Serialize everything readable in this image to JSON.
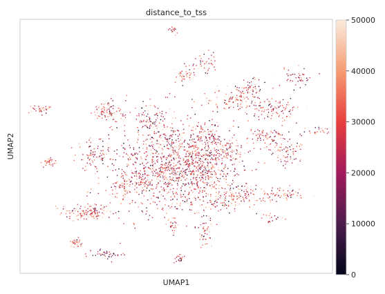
{
  "chart_data": {
    "type": "scatter",
    "title": "distance_to_tss",
    "xlabel": "UMAP1",
    "ylabel": "UMAP2",
    "grid": false,
    "colorbar": {
      "label": "",
      "range": [
        0,
        50000
      ],
      "ticks": [
        0,
        10000,
        20000,
        30000,
        40000,
        50000
      ],
      "tick_labels": [
        "0",
        "10000",
        "20000",
        "30000",
        "40000",
        "50000"
      ],
      "colormap": "rocket",
      "colors": [
        "#03051a",
        "#4c1d4b",
        "#a11a5b",
        "#e83f3f",
        "#f69c73",
        "#faebdd"
      ]
    },
    "clusters": [
      {
        "x": 0.47,
        "y": 0.58,
        "sx": 0.1,
        "sy": 0.1,
        "n": 900,
        "value": 28000
      },
      {
        "x": 0.58,
        "y": 0.57,
        "sx": 0.07,
        "sy": 0.07,
        "n": 500,
        "value": 30000
      },
      {
        "x": 0.22,
        "y": 0.76,
        "sx": 0.04,
        "sy": 0.015,
        "n": 150,
        "value": 35000
      },
      {
        "x": 0.09,
        "y": 0.56,
        "sx": 0.015,
        "sy": 0.01,
        "n": 40,
        "value": 33000
      },
      {
        "x": 0.07,
        "y": 0.35,
        "sx": 0.02,
        "sy": 0.01,
        "n": 40,
        "value": 35000
      },
      {
        "x": 0.28,
        "y": 0.36,
        "sx": 0.025,
        "sy": 0.02,
        "n": 90,
        "value": 33000
      },
      {
        "x": 0.23,
        "y": 0.53,
        "sx": 0.03,
        "sy": 0.03,
        "n": 70,
        "value": 30000
      },
      {
        "x": 0.79,
        "y": 0.46,
        "sx": 0.03,
        "sy": 0.02,
        "n": 80,
        "value": 30000
      },
      {
        "x": 0.81,
        "y": 0.35,
        "sx": 0.04,
        "sy": 0.02,
        "n": 100,
        "value": 30000
      },
      {
        "x": 0.85,
        "y": 0.52,
        "sx": 0.025,
        "sy": 0.03,
        "n": 80,
        "value": 30000
      },
      {
        "x": 0.68,
        "y": 0.32,
        "sx": 0.05,
        "sy": 0.02,
        "n": 90,
        "value": 32000
      },
      {
        "x": 0.73,
        "y": 0.28,
        "sx": 0.03,
        "sy": 0.02,
        "n": 70,
        "value": 30000
      },
      {
        "x": 0.53,
        "y": 0.22,
        "sx": 0.015,
        "sy": 0.015,
        "n": 40,
        "value": 32000
      },
      {
        "x": 0.59,
        "y": 0.17,
        "sx": 0.02,
        "sy": 0.02,
        "n": 40,
        "value": 30000
      },
      {
        "x": 0.51,
        "y": 0.94,
        "sx": 0.01,
        "sy": 0.01,
        "n": 25,
        "value": 30000
      },
      {
        "x": 0.59,
        "y": 0.84,
        "sx": 0.015,
        "sy": 0.03,
        "n": 50,
        "value": 32000
      },
      {
        "x": 0.49,
        "y": 0.8,
        "sx": 0.01,
        "sy": 0.02,
        "n": 30,
        "value": 30000
      },
      {
        "x": 0.34,
        "y": 0.66,
        "sx": 0.025,
        "sy": 0.025,
        "n": 70,
        "value": 33000
      },
      {
        "x": 0.4,
        "y": 0.63,
        "sx": 0.02,
        "sy": 0.02,
        "n": 40,
        "value": 32000
      },
      {
        "x": 0.72,
        "y": 0.69,
        "sx": 0.04,
        "sy": 0.02,
        "n": 100,
        "value": 32000
      },
      {
        "x": 0.84,
        "y": 0.69,
        "sx": 0.03,
        "sy": 0.015,
        "n": 70,
        "value": 33000
      },
      {
        "x": 0.64,
        "y": 0.72,
        "sx": 0.03,
        "sy": 0.02,
        "n": 50,
        "value": 30000
      },
      {
        "x": 0.8,
        "y": 0.78,
        "sx": 0.02,
        "sy": 0.01,
        "n": 20,
        "value": 30000
      },
      {
        "x": 0.18,
        "y": 0.88,
        "sx": 0.01,
        "sy": 0.01,
        "n": 40,
        "value": 35000
      },
      {
        "x": 0.88,
        "y": 0.23,
        "sx": 0.025,
        "sy": 0.02,
        "n": 50,
        "value": 30000
      },
      {
        "x": 0.95,
        "y": 0.44,
        "sx": 0.02,
        "sy": 0.01,
        "n": 25,
        "value": 30000
      },
      {
        "x": 0.49,
        "y": 0.04,
        "sx": 0.008,
        "sy": 0.008,
        "n": 15,
        "value": 30000
      },
      {
        "x": 0.42,
        "y": 0.4,
        "sx": 0.03,
        "sy": 0.04,
        "n": 80,
        "value": 28000
      },
      {
        "x": 0.6,
        "y": 0.45,
        "sx": 0.02,
        "sy": 0.03,
        "n": 50,
        "value": 28000
      },
      {
        "x": 0.66,
        "y": 0.52,
        "sx": 0.02,
        "sy": 0.02,
        "n": 40,
        "value": 30000
      },
      {
        "x": 0.27,
        "y": 0.92,
        "sx": 0.03,
        "sy": 0.01,
        "n": 40,
        "value": 20000
      }
    ]
  }
}
